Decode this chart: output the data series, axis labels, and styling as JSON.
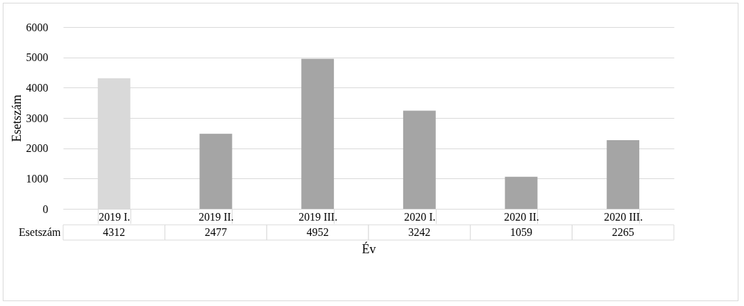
{
  "chart_data": {
    "type": "bar",
    "xlabel": "Év",
    "ylabel": "Esetszám",
    "categories": [
      "2019 I.",
      "2019 II.",
      "2019 III.",
      "2020 I.",
      "2020 II.",
      "2020 III."
    ],
    "series": [
      {
        "name": "Esetszám",
        "values": [
          4312,
          2477,
          4952,
          3242,
          1059,
          2265
        ],
        "colors": [
          "#d9d9d9",
          "#a5a5a5",
          "#a5a5a5",
          "#a5a5a5",
          "#a5a5a5",
          "#a5a5a5"
        ]
      }
    ],
    "ylim": [
      0,
      6000
    ],
    "yticks": [
      0,
      1000,
      2000,
      3000,
      4000,
      5000,
      6000
    ],
    "grid": "y",
    "data_labels": true,
    "legend": "bottom"
  }
}
